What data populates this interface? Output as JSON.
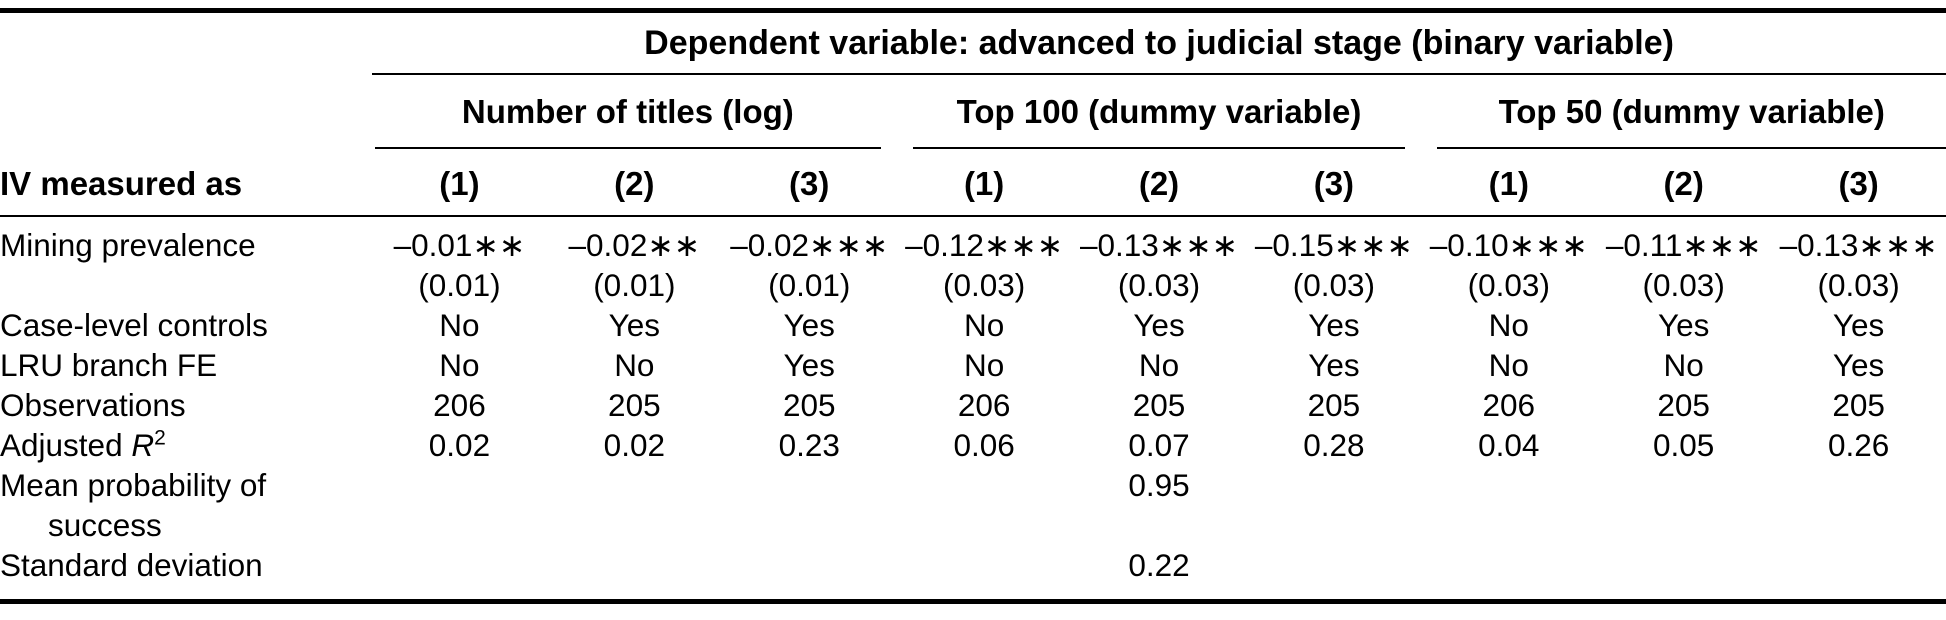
{
  "table": {
    "dependent_variable_header": "Dependent variable: advanced to judicial stage (binary variable)",
    "iv_label": "IV measured as",
    "groups": [
      {
        "label": "Number of titles (log)",
        "columns": [
          "(1)",
          "(2)",
          "(3)"
        ]
      },
      {
        "label": "Top 100 (dummy variable)",
        "columns": [
          "(1)",
          "(2)",
          "(3)"
        ]
      },
      {
        "label": "Top 50 (dummy variable)",
        "columns": [
          "(1)",
          "(2)",
          "(3)"
        ]
      }
    ],
    "rows": {
      "mining": {
        "label": "Mining prevalence",
        "coef": [
          "–0.01∗∗",
          "–0.02∗∗",
          "–0.02∗∗∗",
          "–0.12∗∗∗",
          "–0.13∗∗∗",
          "–0.15∗∗∗",
          "–0.10∗∗∗",
          "–0.11∗∗∗",
          "–0.13∗∗∗"
        ],
        "se": [
          "(0.01)",
          "(0.01)",
          "(0.01)",
          "(0.03)",
          "(0.03)",
          "(0.03)",
          "(0.03)",
          "(0.03)",
          "(0.03)"
        ]
      },
      "controls": {
        "label": "Case-level controls",
        "values": [
          "No",
          "Yes",
          "Yes",
          "No",
          "Yes",
          "Yes",
          "No",
          "Yes",
          "Yes"
        ]
      },
      "fe": {
        "label": "LRU branch FE",
        "values": [
          "No",
          "No",
          "Yes",
          "No",
          "No",
          "Yes",
          "No",
          "No",
          "Yes"
        ]
      },
      "obs": {
        "label": "Observations",
        "values": [
          "206",
          "205",
          "205",
          "206",
          "205",
          "205",
          "206",
          "205",
          "205"
        ]
      },
      "ar2": {
        "label_prefix": "Adjusted ",
        "symbol": "R",
        "exponent": "2",
        "values": [
          "0.02",
          "0.02",
          "0.23",
          "0.06",
          "0.07",
          "0.28",
          "0.04",
          "0.05",
          "0.26"
        ]
      },
      "meanprob": {
        "label_line1": "Mean probability of",
        "label_line2": "success",
        "values": [
          "",
          "",
          "",
          "",
          "0.95",
          "",
          "",
          "",
          ""
        ]
      },
      "sd": {
        "label": "Standard deviation",
        "values": [
          "",
          "",
          "",
          "",
          "0.22",
          "",
          "",
          "",
          ""
        ]
      }
    },
    "colors": {
      "text": "#000000",
      "background": "#ffffff",
      "rule": "#000000"
    }
  }
}
